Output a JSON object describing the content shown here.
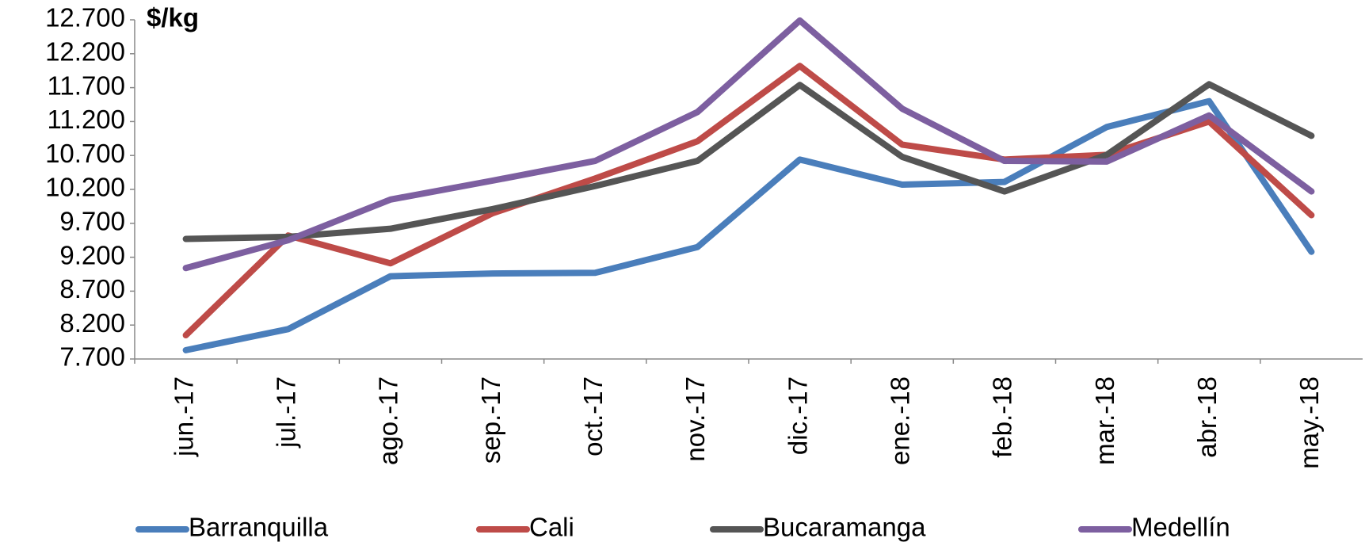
{
  "chart_data": {
    "type": "line",
    "y_label": "$/kg",
    "categories": [
      "jun.-17",
      "jul.-17",
      "ago.-17",
      "sep.-17",
      "oct.-17",
      "nov.-17",
      "dic.-17",
      "ene.-18",
      "feb.-18",
      "mar.-18",
      "abr.-18",
      "may.-18"
    ],
    "series": [
      {
        "name": "Barranquilla",
        "color": "#4a7ebb",
        "values": [
          7830,
          8140,
          8920,
          8960,
          8970,
          9350,
          10640,
          10270,
          10310,
          11120,
          11500,
          9280
        ]
      },
      {
        "name": "Cali",
        "color": "#be4b48",
        "values": [
          8050,
          9520,
          9110,
          9850,
          10360,
          10910,
          12020,
          10860,
          10640,
          10710,
          11200,
          9820
        ]
      },
      {
        "name": "Bucaramanga",
        "color": "#555555",
        "values": [
          9470,
          9500,
          9620,
          9910,
          10250,
          10620,
          11740,
          10680,
          10170,
          10710,
          11750,
          10990
        ]
      },
      {
        "name": "Medellín",
        "color": "#7d5fa0",
        "values": [
          9040,
          9450,
          10050,
          10330,
          10620,
          11340,
          12690,
          11390,
          10620,
          10610,
          11290,
          10170
        ]
      }
    ],
    "ylim": [
      7700,
      12700
    ],
    "yticks": [
      {
        "value": 7700,
        "label": "7.700"
      },
      {
        "value": 8200,
        "label": "8.200"
      },
      {
        "value": 8700,
        "label": "8.700"
      },
      {
        "value": 9200,
        "label": "9.200"
      },
      {
        "value": 9700,
        "label": "9.700"
      },
      {
        "value": 10200,
        "label": "10.200"
      },
      {
        "value": 10700,
        "label": "10.700"
      },
      {
        "value": 11200,
        "label": "11.200"
      },
      {
        "value": 11700,
        "label": "11.700"
      },
      {
        "value": 12200,
        "label": "12.200"
      },
      {
        "value": 12700,
        "label": "12.700"
      }
    ],
    "grid": false,
    "legend": "bottom"
  }
}
